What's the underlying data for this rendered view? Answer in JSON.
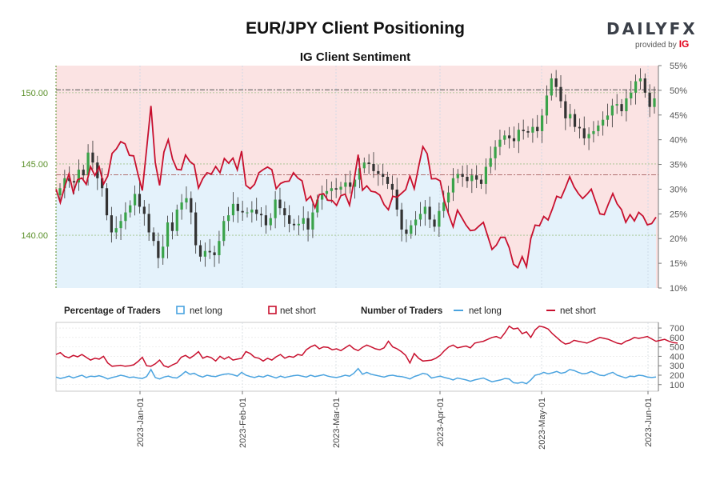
{
  "header": {
    "title": "EUR/JPY Client Positioning",
    "subtitle": "IG Client Sentiment",
    "logo_text": "DAILYFX",
    "logo_provided_by": "provided by",
    "logo_ig": "IG"
  },
  "legend": {
    "pct_title": "Percentage of Traders",
    "pct_long": "net long",
    "pct_short": "net short",
    "num_title": "Number of Traders",
    "num_long": "net long",
    "num_short": "net short"
  },
  "colors": {
    "long_line": "#4aa3df",
    "short_line": "#c8102e",
    "long_fill": "#e4f2fb",
    "short_fill": "#fbe3e3",
    "bull_candle": "#3aa34a",
    "bear_candle": "#333333",
    "price_axis": "#5a8f29"
  },
  "chart_data": [
    {
      "type": "line",
      "name": "price_and_percentage",
      "title": "EUR/JPY Client Positioning",
      "subtitle": "IG Client Sentiment",
      "price_axis": {
        "ticks": [
          "140.00",
          "145.00",
          "150.00"
        ],
        "ylim": [
          136.3,
          151.9
        ]
      },
      "pct_axis": {
        "ticks": [
          "10%",
          "15%",
          "20%",
          "25%",
          "30%",
          "35%",
          "40%",
          "45%",
          "50%",
          "55%"
        ],
        "ylim": [
          10,
          55
        ]
      },
      "x_labels": [
        "2023-Jan-01",
        "2023-Feb-01",
        "2023-Mar-01",
        "2023-Apr-01",
        "2023-May-01",
        "2023-Jun-01"
      ],
      "reference_lines": {
        "price": 150.2,
        "pct": 32.9
      },
      "candles_close": [
        143.3,
        144.0,
        143.8,
        143.7,
        144.6,
        144.2,
        145.8,
        145.1,
        144.0,
        143.3,
        141.4,
        140.2,
        140.5,
        141.0,
        141.6,
        142.1,
        142.9,
        142.0,
        141.5,
        140.2,
        139.6,
        138.4,
        139.2,
        140.9,
        140.3,
        141.8,
        142.3,
        142.6,
        141.6,
        139.3,
        138.5,
        138.9,
        138.8,
        138.6,
        139.6,
        141.0,
        141.4,
        142.2,
        141.7,
        141.6,
        141.6,
        141.8,
        141.5,
        141.4,
        140.7,
        141.2,
        142.5,
        141.9,
        141.4,
        140.8,
        140.7,
        140.8,
        141.2,
        140.4,
        141.6,
        142.5,
        142.9,
        143.1,
        143.3,
        143.2,
        143.4,
        143.7,
        143.4,
        143.9,
        144.7,
        145.1,
        145.0,
        144.5,
        144.3,
        144.1,
        143.6,
        143.2,
        141.8,
        140.4,
        140.1,
        140.7,
        141.1,
        141.5,
        142.0,
        141.1,
        140.6,
        141.7,
        142.3,
        143.0,
        144.0,
        144.3,
        144.1,
        143.8,
        144.2,
        143.9,
        143.6,
        144.8,
        145.4,
        146.2,
        146.7,
        147.0,
        146.8,
        146.6,
        147.4,
        147.3,
        147.2,
        147.6,
        147.3,
        148.4,
        149.8,
        151.0,
        150.4,
        149.4,
        148.2,
        148.5,
        147.6,
        147.5,
        146.8,
        147.1,
        147.3,
        147.7,
        148.1,
        148.4,
        149.1,
        149.2,
        148.7,
        149.6,
        150.0,
        150.8,
        151.0,
        150.0,
        149.0,
        149.6
      ]
    },
    {
      "type": "line",
      "name": "number_of_traders",
      "yticks": [
        "100",
        "200",
        "300",
        "400",
        "500",
        "600",
        "700"
      ],
      "ylim": [
        30,
        760
      ],
      "x_labels": [
        "2023-Jan-01",
        "2023-Feb-01",
        "2023-Mar-01",
        "2023-Apr-01",
        "2023-May-01",
        "2023-Jun-01"
      ],
      "series": [
        {
          "name": "net long",
          "values": [
            180,
            165,
            175,
            190,
            170,
            185,
            200,
            175,
            190,
            185,
            195,
            180,
            160,
            175,
            185,
            200,
            190,
            175,
            180,
            170,
            165,
            185,
            260,
            175,
            160,
            180,
            190,
            175,
            170,
            200,
            240,
            210,
            220,
            195,
            180,
            200,
            190,
            185,
            200,
            210,
            215,
            205,
            190,
            230,
            200,
            185,
            175,
            190,
            180,
            200,
            185,
            170,
            190,
            175,
            185,
            195,
            200,
            190,
            180,
            200,
            185,
            195,
            205,
            190,
            180,
            175,
            185,
            200,
            190,
            220,
            270,
            210,
            230,
            210,
            200,
            190,
            180,
            195,
            200,
            190,
            185,
            175,
            160,
            185,
            200,
            220,
            210,
            170,
            180,
            190,
            175,
            165,
            150,
            170,
            160,
            150,
            135,
            150,
            160,
            170,
            150,
            130,
            140,
            150,
            165,
            160,
            120,
            115,
            125,
            110,
            150,
            200,
            210,
            230,
            215,
            225,
            240,
            220,
            230,
            260,
            250,
            230,
            215,
            220,
            240,
            220,
            200,
            195,
            215,
            230,
            200,
            185,
            170,
            190,
            185,
            200,
            195,
            180,
            175,
            180
          ]
        },
        {
          "name": "net short",
          "values": [
            420,
            440,
            400,
            385,
            410,
            395,
            420,
            390,
            360,
            380,
            370,
            400,
            330,
            295,
            300,
            305,
            295,
            300,
            310,
            345,
            390,
            300,
            295,
            320,
            360,
            300,
            285,
            310,
            330,
            390,
            410,
            380,
            410,
            450,
            380,
            400,
            385,
            350,
            400,
            370,
            395,
            360,
            370,
            380,
            450,
            430,
            390,
            380,
            350,
            380,
            360,
            395,
            420,
            380,
            400,
            390,
            420,
            410,
            470,
            500,
            520,
            480,
            500,
            495,
            470,
            480,
            460,
            490,
            520,
            480,
            460,
            495,
            520,
            500,
            480,
            470,
            490,
            560,
            500,
            480,
            450,
            410,
            330,
            430,
            380,
            350,
            355,
            360,
            380,
            410,
            460,
            500,
            520,
            490,
            500,
            510,
            490,
            540,
            550,
            560,
            580,
            600,
            610,
            590,
            650,
            720,
            690,
            700,
            640,
            660,
            600,
            680,
            720,
            710,
            690,
            640,
            600,
            560,
            530,
            540,
            570,
            560,
            550,
            540,
            560,
            580,
            600,
            590,
            580,
            560,
            540,
            530,
            560,
            575,
            600,
            590,
            600,
            610,
            585,
            560,
            570,
            580,
            560,
            545,
            540
          ]
        }
      ]
    }
  ]
}
